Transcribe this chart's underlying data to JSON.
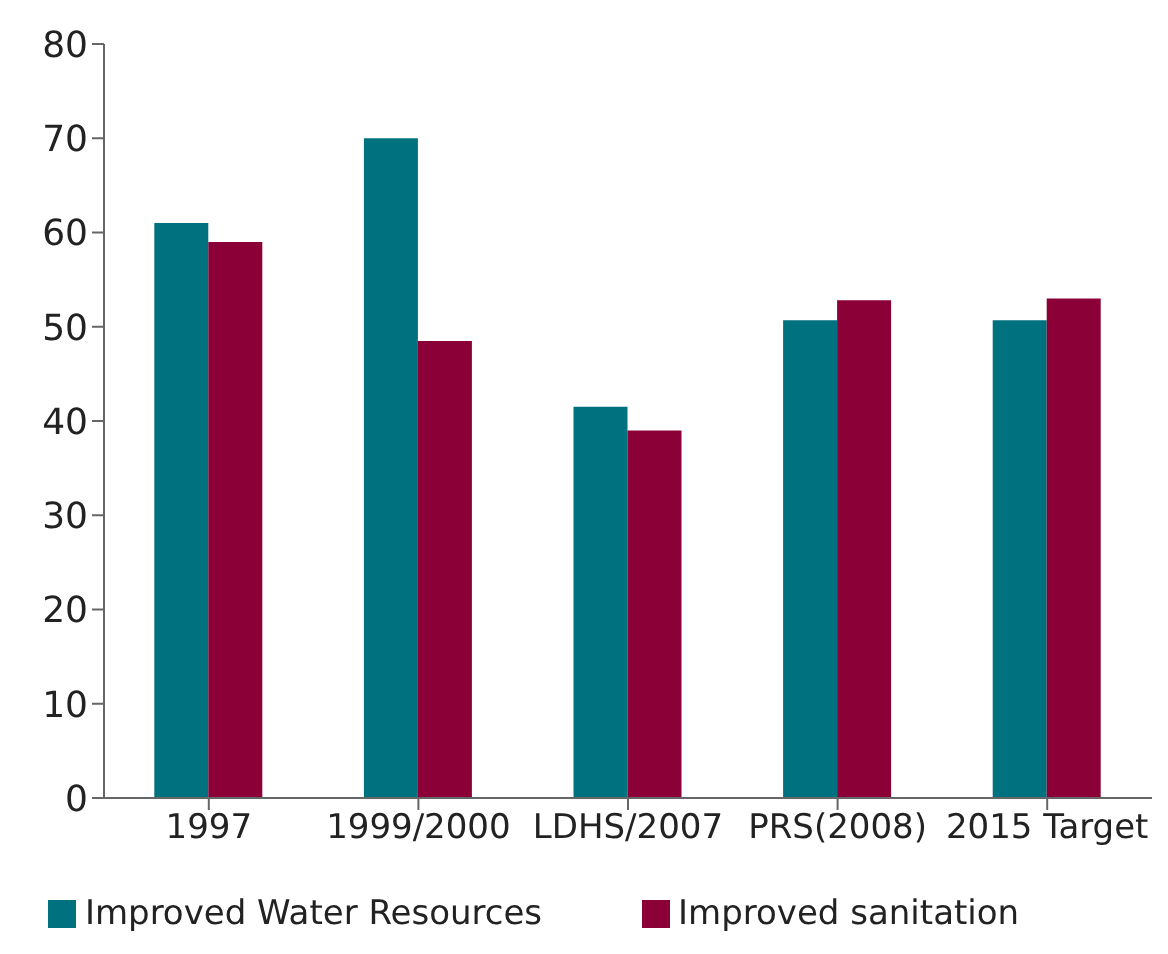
{
  "chart_data": {
    "type": "bar",
    "categories": [
      "1997",
      "1999/2000",
      "LDHS/2007",
      "PRS(2008)",
      "2015 Target"
    ],
    "series": [
      {
        "name": "Improved Water Resources",
        "color": "#00717f",
        "values": [
          61,
          70,
          41.5,
          50.7,
          50.7
        ]
      },
      {
        "name": "Improved sanitation",
        "color": "#8a0037",
        "values": [
          59,
          48.5,
          39,
          52.8,
          53
        ]
      }
    ],
    "ylim": [
      0,
      80
    ],
    "yticks": [
      0,
      10,
      20,
      30,
      40,
      50,
      60,
      70,
      80
    ],
    "grid": false,
    "legend": "bottom"
  }
}
